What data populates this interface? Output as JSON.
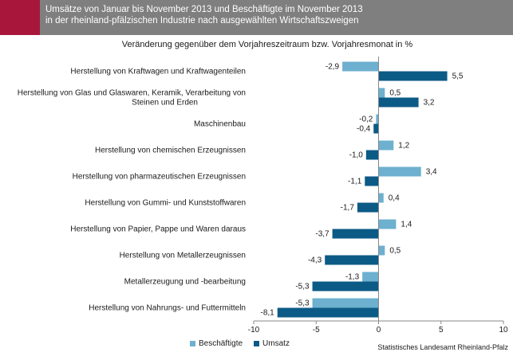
{
  "header": {
    "title": "Umsätze von Januar bis November 2013 und Beschäftigte im November 2013\nin der rheinland-pfälzischen Industrie nach ausgewählten Wirtschaftszweigen"
  },
  "colors": {
    "accent": "#a8163c",
    "header_bg": "#7f7f7f",
    "beschaeftigte": "#6db0cf",
    "umsatz": "#0c5a86"
  },
  "source": "Statistisches Landesamt Rheinland-Pfalz",
  "chart_data": {
    "type": "bar",
    "orientation": "horizontal",
    "title": "Veränderung gegenüber dem Vorjahreszeitraum bzw. Vorjahresmonat in %",
    "categories": [
      "Herstellung von Kraftwagen und Kraftwagenteilen",
      "Herstellung von Glas und Glaswaren, Keramik, Verarbeitung von\nSteinen und Erden",
      "Maschinenbau",
      "Herstellung von chemischen Erzeugnissen",
      "Herstellung von pharmazeutischen Erzeugnissen",
      "Herstellung von Gummi- und Kunststoffwaren",
      "Herstellung von Papier, Pappe und Waren daraus",
      "Herstellung von Metallerzeugnissen",
      "Metallerzeugung und -bearbeitung",
      "Herstellung von Nahrungs- und Futtermitteln"
    ],
    "series": [
      {
        "name": "Beschäftigte",
        "values": [
          -2.9,
          0.5,
          -0.2,
          1.2,
          3.4,
          0.4,
          1.4,
          0.5,
          -1.3,
          -5.3
        ],
        "labels": [
          "-2,9",
          "0,5",
          "-0,2",
          "1,2",
          "3,4",
          "0,4",
          "1,4",
          "0,5",
          "-1,3",
          "-5,3"
        ]
      },
      {
        "name": "Umsatz",
        "values": [
          5.5,
          3.2,
          -0.4,
          -1.0,
          -1.1,
          -1.7,
          -3.7,
          -4.3,
          -5.3,
          -8.1
        ],
        "labels": [
          "5,5",
          "3,2",
          "-0,4",
          "-1,0",
          "-1,1",
          "-1,7",
          "-3,7",
          "-4,3",
          "-5,3",
          "-8,1"
        ]
      }
    ],
    "xlim": [
      -10,
      10
    ],
    "xticks": [
      -10,
      -5,
      0,
      5,
      10
    ],
    "xtick_labels": [
      "-10",
      "-5",
      "0",
      "5",
      "10"
    ],
    "legend_position": "bottom-left",
    "grid": false
  }
}
